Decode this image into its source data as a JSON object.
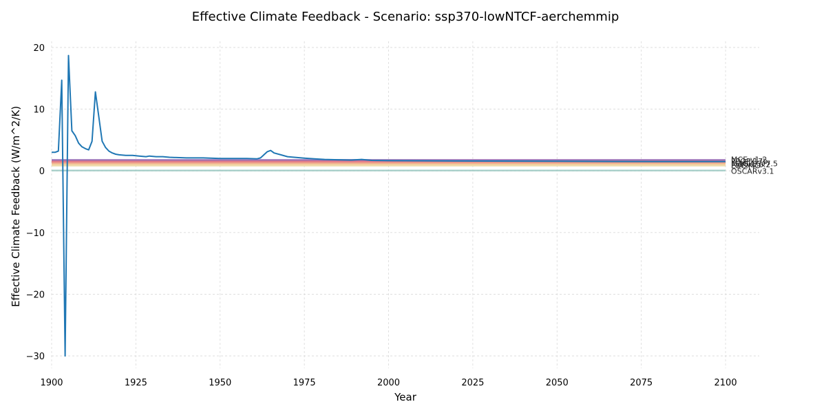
{
  "chart_data": {
    "type": "line",
    "title": "Effective Climate Feedback - Scenario: ssp370-lowNTCF-aerchemmip",
    "xlabel": "Year",
    "ylabel": "Effective Climate Feedback (W/m^2/K)",
    "xlim": [
      1900,
      2110
    ],
    "ylim": [
      -32,
      21
    ],
    "xticks": [
      1900,
      1925,
      1950,
      1975,
      2000,
      2025,
      2050,
      2075,
      2100
    ],
    "xtick_labels": [
      "1900",
      "1925",
      "1950",
      "1975",
      "2000",
      "2025",
      "2050",
      "2075",
      "2100"
    ],
    "yticks": [
      20,
      10,
      0,
      -10,
      -20,
      -30
    ],
    "ytick_labels": [
      "20",
      "10",
      "0",
      "−10",
      "−20",
      "−30"
    ],
    "grid": true,
    "legend": "none",
    "series": [
      {
        "name": "",
        "color": "#1f77b4",
        "x": [
          1900,
          1901,
          1902,
          1903,
          1904,
          1905,
          1906,
          1907,
          1908,
          1909,
          1910,
          1911,
          1912,
          1913,
          1914,
          1915,
          1916,
          1917,
          1918,
          1919,
          1920,
          1922,
          1924,
          1926,
          1928,
          1929,
          1931,
          1933,
          1935,
          1940,
          1945,
          1950,
          1955,
          1958,
          1961,
          1962,
          1963,
          1964,
          1965,
          1966,
          1968,
          1970,
          1972,
          1975,
          1978,
          1981,
          1985,
          1989,
          1992,
          1995,
          2000,
          2020,
          2050,
          2080,
          2100
        ],
        "y": [
          3.0,
          3.0,
          3.2,
          14.7,
          -30.0,
          18.7,
          6.5,
          5.7,
          4.5,
          3.9,
          3.6,
          3.4,
          4.8,
          12.8,
          8.8,
          4.8,
          3.8,
          3.2,
          2.9,
          2.7,
          2.6,
          2.5,
          2.5,
          2.4,
          2.3,
          2.4,
          2.3,
          2.3,
          2.2,
          2.1,
          2.1,
          2.0,
          2.0,
          2.0,
          1.95,
          2.1,
          2.6,
          3.1,
          3.3,
          2.9,
          2.6,
          2.3,
          2.2,
          2.05,
          1.95,
          1.85,
          1.8,
          1.75,
          1.85,
          1.7,
          1.65,
          1.6,
          1.55,
          1.5,
          1.5
        ]
      },
      {
        "name": "MCE-v1-2",
        "color": "#b07fbf",
        "x": [
          1900,
          2100
        ],
        "y": [
          1.78,
          1.78
        ]
      },
      {
        "name": "MCE-v1-2PPOP",
        "color": "#8e73b8",
        "x": [
          1900,
          2100
        ],
        "y": [
          1.68,
          1.68
        ]
      },
      {
        "name": "FaIRv1.6.2",
        "color": "#d06a8a",
        "x": [
          1900,
          2100
        ],
        "y": [
          1.55,
          1.55
        ]
      },
      {
        "name": "FaIRv2.0.0",
        "color": "#e0788a",
        "x": [
          1900,
          2100
        ],
        "y": [
          1.45,
          1.45
        ]
      },
      {
        "name": "MAGICCv7.5.1",
        "color": "#e88a8a",
        "x": [
          1900,
          2100
        ],
        "y": [
          1.35,
          1.35
        ]
      },
      {
        "name": "CICERO-SCM",
        "color": "#eda087",
        "x": [
          1900,
          2100
        ],
        "y": [
          1.25,
          1.25
        ]
      },
      {
        "name": "ESCIMO",
        "color": "#f0b890",
        "x": [
          1900,
          2100
        ],
        "y": [
          1.1,
          1.1
        ]
      },
      {
        "name": "MAGICCv7.5.3",
        "color": "#f2cc9a",
        "x": [
          1900,
          2100
        ],
        "y": [
          0.98,
          0.98
        ]
      },
      {
        "name": "MCE-v1-2",
        "color": "#ecdba8",
        "x": [
          1900,
          2100
        ],
        "y": [
          0.85,
          0.85
        ]
      },
      {
        "name": "OSCARv3.1",
        "color": "#9cc9c2",
        "x": [
          1900,
          2100
        ],
        "y": [
          0.05,
          0.05
        ]
      }
    ]
  },
  "series_labels": [
    "MCE-v1-2",
    "PPOP-17b",
    "MAGICCv7.5",
    "FaIRv1.6.2",
    "ESCIMO",
    "OSCARv3.1"
  ]
}
